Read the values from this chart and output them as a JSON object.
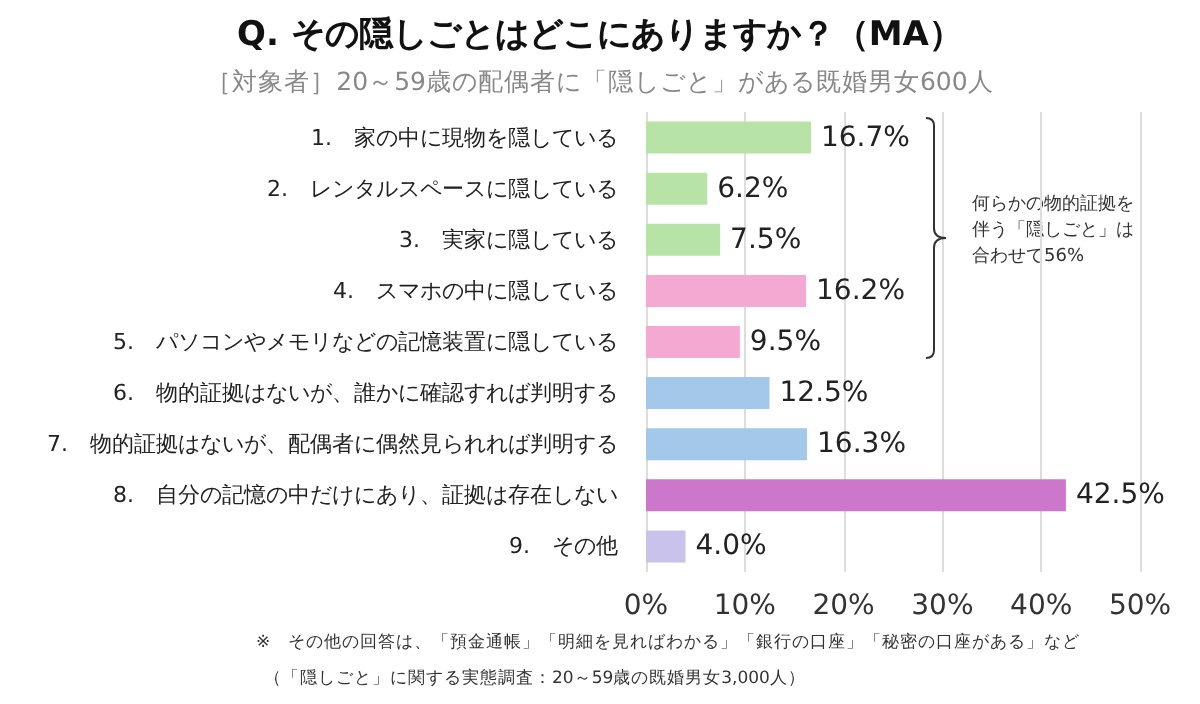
{
  "chart_data": {
    "type": "bar",
    "orientation": "horizontal",
    "title": "Q. その隠しごとはどこにありますか？（MA）",
    "subtitle": "［対象者］20～59歳の配偶者に「隠しごと」がある既婚男女600人",
    "categories": [
      "1.　家の中に現物を隠している",
      "2.　レンタルスペースに隠している",
      "3.　実家に隠している",
      "4.　スマホの中に隠している",
      "5.　パソコンやメモリなどの記憶装置に隠している",
      "6.　物的証拠はないが、誰かに確認すれば判明する",
      "7.　物的証拠はないが、配偶者に偶然見られれば判明する",
      "8.　自分の記憶の中だけにあり、証拠は存在しない",
      "9.　その他"
    ],
    "values": [
      16.7,
      6.2,
      7.5,
      16.2,
      9.5,
      12.5,
      16.3,
      42.5,
      4.0
    ],
    "colors": [
      "#b7e4a6",
      "#b7e4a6",
      "#b7e4a6",
      "#f4a9d2",
      "#f4a9d2",
      "#a3c8ea",
      "#a3c8ea",
      "#cc77cc",
      "#c9c2ea"
    ],
    "value_labels": [
      "16.7%",
      "6.2%",
      "7.5%",
      "16.2%",
      "9.5%",
      "12.5%",
      "16.3%",
      "42.5%",
      "4.0%"
    ],
    "xlim": [
      0,
      50
    ],
    "xticks": [
      {
        "value": 0,
        "label": "0%"
      },
      {
        "value": 10,
        "label": "10%"
      },
      {
        "value": 20,
        "label": "20%"
      },
      {
        "value": 30,
        "label": "30%"
      },
      {
        "value": 40,
        "label": "40%"
      },
      {
        "value": 50,
        "label": "50%"
      }
    ],
    "grid": "x",
    "annotations": [
      "何らかの物的証拠を伴う「隠しごと」は合わせて56%",
      "※　その他の回答は、「預金通帳」「明細を見ればわかる」「銀行の口座」「秘密の口座がある」など",
      "（「隠しごと」に関する実態調査：20～59歳の既婚男女3,000人）"
    ]
  }
}
